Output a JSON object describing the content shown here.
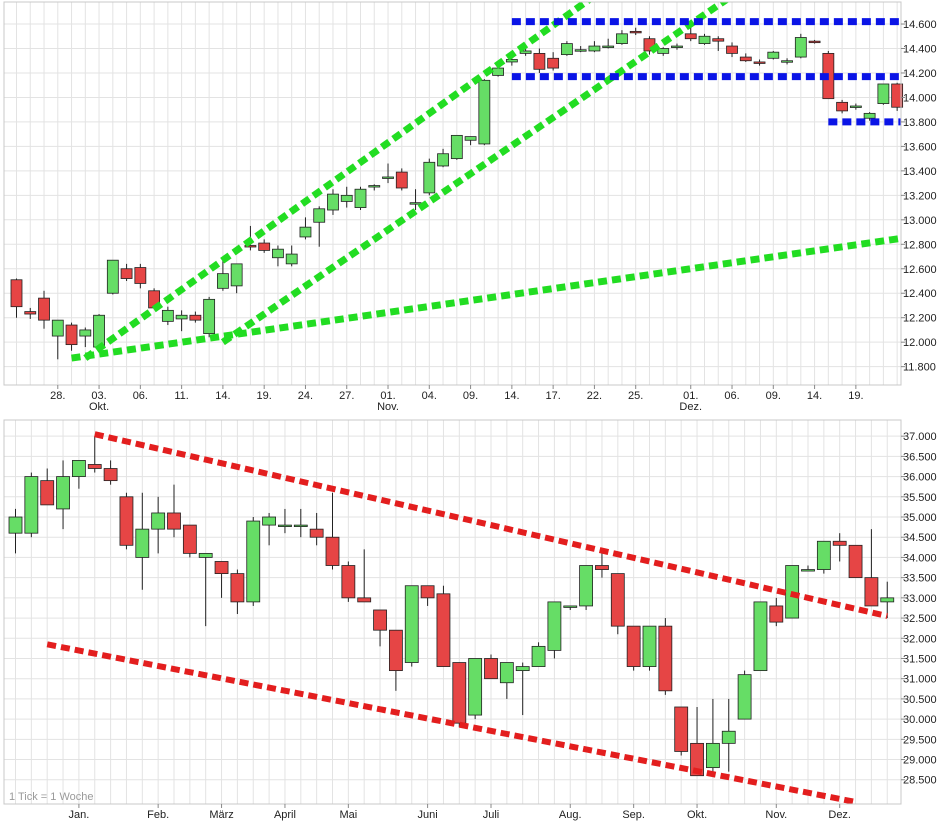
{
  "chart_data": [
    {
      "type": "candlestick",
      "title": "",
      "ylim": [
        11650,
        14780
      ],
      "grid": true,
      "colors": {
        "up": "#66dd66",
        "down": "#e64545",
        "wick": "#222222"
      },
      "y_ticks": [
        11800,
        12000,
        12200,
        12400,
        12600,
        12800,
        13000,
        13200,
        13400,
        13600,
        13800,
        14000,
        14200,
        14400,
        14600
      ],
      "y_tick_labels": [
        "11.800",
        "12.000",
        "12.200",
        "12.400",
        "12.600",
        "12.800",
        "13.000",
        "13.200",
        "13.400",
        "13.600",
        "13.800",
        "14.000",
        "14.200",
        "14.400",
        "14.600"
      ],
      "x_ticks": [
        {
          "i": 3,
          "label": "28.",
          "sub": ""
        },
        {
          "i": 6,
          "label": "03.",
          "sub": "Okt."
        },
        {
          "i": 9,
          "label": "06.",
          "sub": ""
        },
        {
          "i": 12,
          "label": "11.",
          "sub": ""
        },
        {
          "i": 15,
          "label": "14.",
          "sub": ""
        },
        {
          "i": 18,
          "label": "19.",
          "sub": ""
        },
        {
          "i": 21,
          "label": "24.",
          "sub": ""
        },
        {
          "i": 24,
          "label": "27.",
          "sub": ""
        },
        {
          "i": 27,
          "label": "01.",
          "sub": "Nov."
        },
        {
          "i": 30,
          "label": "04.",
          "sub": ""
        },
        {
          "i": 33,
          "label": "09.",
          "sub": ""
        },
        {
          "i": 36,
          "label": "14.",
          "sub": ""
        },
        {
          "i": 39,
          "label": "17.",
          "sub": ""
        },
        {
          "i": 42,
          "label": "22.",
          "sub": ""
        },
        {
          "i": 45,
          "label": "25.",
          "sub": ""
        },
        {
          "i": 49,
          "label": "01.",
          "sub": "Dez."
        },
        {
          "i": 52,
          "label": "06.",
          "sub": ""
        },
        {
          "i": 55,
          "label": "09.",
          "sub": ""
        },
        {
          "i": 58,
          "label": "14.",
          "sub": ""
        },
        {
          "i": 61,
          "label": "19.",
          "sub": ""
        }
      ],
      "candles": [
        [
          12510,
          12520,
          12200,
          12290
        ],
        [
          12250,
          12280,
          12190,
          12230
        ],
        [
          12360,
          12420,
          12110,
          12180
        ],
        [
          12050,
          12170,
          11860,
          12180
        ],
        [
          12140,
          12160,
          11930,
          11980
        ],
        [
          12050,
          12120,
          11960,
          12100
        ],
        [
          11960,
          12230,
          11930,
          12220
        ],
        [
          12400,
          12660,
          12390,
          12670
        ],
        [
          12600,
          12640,
          12500,
          12520
        ],
        [
          12610,
          12640,
          12440,
          12480
        ],
        [
          12420,
          12440,
          12270,
          12280
        ],
        [
          12170,
          12290,
          12140,
          12260
        ],
        [
          12190,
          12260,
          12090,
          12220
        ],
        [
          12220,
          12250,
          12160,
          12180
        ],
        [
          12070,
          12370,
          12040,
          12350
        ],
        [
          12440,
          12670,
          12420,
          12560
        ],
        [
          12460,
          12640,
          12400,
          12640
        ],
        [
          12790,
          12950,
          12750,
          12780
        ],
        [
          12810,
          12840,
          12730,
          12750
        ],
        [
          12690,
          12790,
          12620,
          12760
        ],
        [
          12640,
          12790,
          12620,
          12720
        ],
        [
          12860,
          13020,
          12840,
          12940
        ],
        [
          12980,
          13110,
          12780,
          13090
        ],
        [
          13080,
          13250,
          13040,
          13210
        ],
        [
          13150,
          13270,
          13100,
          13200
        ],
        [
          13100,
          13270,
          13080,
          13250
        ],
        [
          13270,
          13290,
          13240,
          13280
        ],
        [
          13350,
          13460,
          13300,
          13350
        ],
        [
          13390,
          13420,
          13240,
          13260
        ],
        [
          13140,
          13250,
          13080,
          13140
        ],
        [
          13220,
          13500,
          13200,
          13470
        ],
        [
          13440,
          13580,
          13430,
          13540
        ],
        [
          13500,
          13690,
          13490,
          13690
        ],
        [
          13650,
          13680,
          13610,
          13680
        ],
        [
          13620,
          14150,
          13610,
          14140
        ],
        [
          14180,
          14260,
          14170,
          14240
        ],
        [
          14290,
          14370,
          14260,
          14310
        ],
        [
          14360,
          14410,
          14340,
          14380
        ],
        [
          14360,
          14400,
          14200,
          14230
        ],
        [
          14320,
          14370,
          14220,
          14240
        ],
        [
          14350,
          14460,
          14340,
          14440
        ],
        [
          14390,
          14420,
          14370,
          14390
        ],
        [
          14380,
          14460,
          14370,
          14420
        ],
        [
          14410,
          14480,
          14400,
          14420
        ],
        [
          14440,
          14550,
          14430,
          14520
        ],
        [
          14540,
          14570,
          14510,
          14530
        ],
        [
          14480,
          14500,
          14350,
          14380
        ],
        [
          14360,
          14410,
          14340,
          14400
        ],
        [
          14420,
          14440,
          14390,
          14420
        ],
        [
          14520,
          14590,
          14460,
          14480
        ],
        [
          14440,
          14520,
          14430,
          14500
        ],
        [
          14480,
          14500,
          14380,
          14460
        ],
        [
          14420,
          14450,
          14330,
          14360
        ],
        [
          14330,
          14360,
          14290,
          14300
        ],
        [
          14290,
          14310,
          14260,
          14280
        ],
        [
          14320,
          14380,
          14310,
          14370
        ],
        [
          14290,
          14320,
          14270,
          14300
        ],
        [
          14330,
          14520,
          14320,
          14490
        ],
        [
          14460,
          14470,
          14440,
          14450
        ],
        [
          14360,
          14380,
          13990,
          13990
        ],
        [
          13960,
          13980,
          13870,
          13890
        ],
        [
          13930,
          13950,
          13900,
          13930
        ],
        [
          13830,
          13880,
          13810,
          13870
        ],
        [
          13950,
          14110,
          13940,
          14110
        ],
        [
          14110,
          14120,
          13890,
          13920
        ]
      ],
      "annotations": [
        {
          "kind": "trendline",
          "color": "#22dd22",
          "points": [
            [
              5,
              11870
            ],
            [
              42,
              14830
            ]
          ]
        },
        {
          "kind": "trendline",
          "color": "#22dd22",
          "points": [
            [
              15,
              12000
            ],
            [
              52,
              14830
            ]
          ]
        },
        {
          "kind": "trendline",
          "color": "#22dd22",
          "points": [
            [
              4,
              11870
            ],
            [
              65,
              12860
            ]
          ]
        },
        {
          "kind": "trendline",
          "color": "#0a14e6",
          "points": [
            [
              36,
              14620
            ],
            [
              65,
              14620
            ]
          ]
        },
        {
          "kind": "trendline",
          "color": "#0a14e6",
          "points": [
            [
              36,
              14170
            ],
            [
              65,
              14170
            ]
          ]
        },
        {
          "kind": "trendline",
          "color": "#0a14e6",
          "points": [
            [
              59,
              13800
            ],
            [
              65,
              13800
            ]
          ]
        }
      ]
    },
    {
      "type": "candlestick",
      "title": "",
      "ylim": [
        27900,
        37400
      ],
      "grid": true,
      "footnote": "1 Tick = 1 Woche",
      "colors": {
        "up": "#66dd66",
        "down": "#e64545",
        "wick": "#222222"
      },
      "y_ticks": [
        28500,
        29000,
        29500,
        30000,
        30500,
        31000,
        31500,
        32000,
        32500,
        33000,
        33500,
        34000,
        34500,
        35000,
        35500,
        36000,
        36500,
        37000
      ],
      "y_tick_labels": [
        "28.500",
        "29.000",
        "29.500",
        "30.000",
        "30.500",
        "31.000",
        "31.500",
        "32.000",
        "32.500",
        "33.000",
        "33.500",
        "34.000",
        "34.500",
        "35.000",
        "35.500",
        "36.000",
        "36.500",
        "37.000"
      ],
      "x_ticks": [
        {
          "i": 4,
          "label": "Jan."
        },
        {
          "i": 9,
          "label": "Feb."
        },
        {
          "i": 13,
          "label": "März"
        },
        {
          "i": 17,
          "label": "April"
        },
        {
          "i": 21,
          "label": "Mai"
        },
        {
          "i": 26,
          "label": "Juni"
        },
        {
          "i": 30,
          "label": "Juli"
        },
        {
          "i": 35,
          "label": "Aug."
        },
        {
          "i": 39,
          "label": "Sep."
        },
        {
          "i": 43,
          "label": "Okt."
        },
        {
          "i": 48,
          "label": "Nov."
        },
        {
          "i": 52,
          "label": "Dez."
        }
      ],
      "candles": [
        [
          34600,
          35200,
          34100,
          35000
        ],
        [
          34600,
          36100,
          34500,
          36000
        ],
        [
          35900,
          36200,
          35300,
          35300
        ],
        [
          35200,
          36400,
          34700,
          36000
        ],
        [
          36000,
          36400,
          35700,
          36400
        ],
        [
          36300,
          37000,
          36100,
          36200
        ],
        [
          36200,
          36400,
          35800,
          35900
        ],
        [
          35500,
          35600,
          34200,
          34300
        ],
        [
          34000,
          35600,
          33200,
          34700
        ],
        [
          34700,
          35500,
          34100,
          35100
        ],
        [
          35100,
          35800,
          34500,
          34700
        ],
        [
          34800,
          34800,
          34000,
          34100
        ],
        [
          34000,
          34100,
          32300,
          34100
        ],
        [
          33900,
          33900,
          33000,
          33600
        ],
        [
          33600,
          33700,
          32600,
          32900
        ],
        [
          32900,
          35000,
          32800,
          34900
        ],
        [
          34800,
          35100,
          34300,
          35000
        ],
        [
          34800,
          35200,
          34600,
          34800
        ],
        [
          34800,
          35200,
          34500,
          34800
        ],
        [
          34700,
          35100,
          34300,
          34500
        ],
        [
          34500,
          35600,
          33700,
          33800
        ],
        [
          33800,
          33900,
          32900,
          33000
        ],
        [
          33000,
          34200,
          32900,
          32900
        ],
        [
          32700,
          32700,
          31800,
          32200
        ],
        [
          32200,
          32200,
          30700,
          31200
        ],
        [
          31400,
          33300,
          31300,
          33300
        ],
        [
          33300,
          33300,
          32800,
          33000
        ],
        [
          33100,
          33300,
          31300,
          31300
        ],
        [
          31400,
          31400,
          29800,
          29900
        ],
        [
          30100,
          31500,
          30000,
          31500
        ],
        [
          31500,
          31600,
          31000,
          31000
        ],
        [
          30900,
          31400,
          30500,
          31400
        ],
        [
          31200,
          31400,
          30100,
          31300
        ],
        [
          31300,
          31900,
          31300,
          31800
        ],
        [
          31700,
          32900,
          31500,
          32900
        ],
        [
          32800,
          32800,
          32700,
          32800
        ],
        [
          32800,
          33800,
          32700,
          33800
        ],
        [
          33800,
          34200,
          33500,
          33700
        ],
        [
          33600,
          33600,
          32100,
          32300
        ],
        [
          32300,
          32300,
          31200,
          31300
        ],
        [
          31300,
          32300,
          31200,
          32300
        ],
        [
          32300,
          32500,
          30600,
          30700
        ],
        [
          30300,
          30300,
          29100,
          29200
        ],
        [
          29400,
          30300,
          28600,
          28600
        ],
        [
          28800,
          30500,
          28700,
          29400
        ],
        [
          29400,
          30500,
          28700,
          29700
        ],
        [
          30000,
          31200,
          30000,
          31100
        ],
        [
          31200,
          32900,
          31200,
          32900
        ],
        [
          32800,
          33000,
          32300,
          32400
        ],
        [
          32500,
          33800,
          32500,
          33800
        ],
        [
          33700,
          33800,
          33700,
          33700
        ],
        [
          33700,
          34400,
          33600,
          34400
        ],
        [
          34400,
          34600,
          33900,
          34300
        ],
        [
          34300,
          34300,
          33500,
          33500
        ],
        [
          33500,
          34700,
          32800,
          32800
        ],
        [
          32900,
          33400,
          32500,
          33000
        ]
      ],
      "annotations": [
        {
          "kind": "trendline",
          "color": "#e31e1e",
          "points": [
            [
              5,
              37050
            ],
            [
              55,
              32550
            ]
          ]
        },
        {
          "kind": "trendline",
          "color": "#e31e1e",
          "points": [
            [
              2,
              31850
            ],
            [
              53,
              27950
            ]
          ]
        }
      ]
    }
  ]
}
